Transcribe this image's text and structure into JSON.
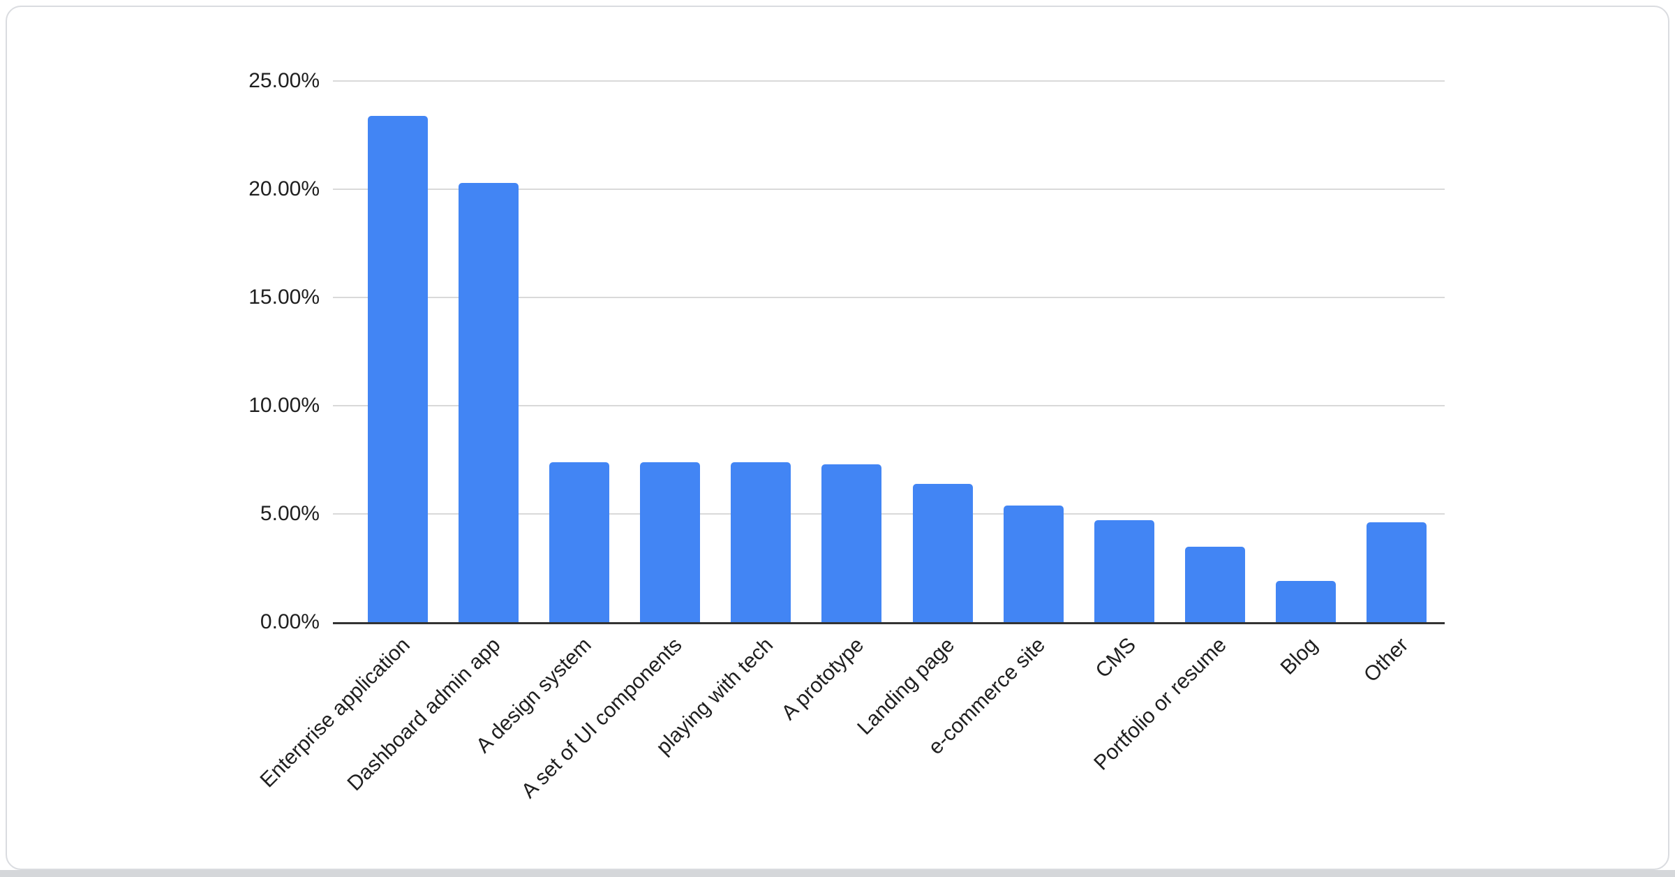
{
  "chart_data": {
    "type": "bar",
    "title": "",
    "xlabel": "",
    "ylabel": "",
    "categories": [
      "Enterprise application",
      "Dashboard admin app",
      "A design system",
      "A set of UI components",
      "playing with tech",
      "A prototype",
      "Landing page",
      "e-commerce site",
      "CMS",
      "Portfolio or resume",
      "Blog",
      "Other"
    ],
    "values": [
      23.4,
      20.3,
      7.4,
      7.4,
      7.4,
      7.3,
      6.4,
      5.4,
      4.7,
      3.5,
      1.9,
      4.6
    ],
    "value_format": "percent",
    "ylim": [
      0,
      25
    ],
    "y_ticks": [
      {
        "value": 25,
        "label": "25.00%"
      },
      {
        "value": 20,
        "label": "20.00%"
      },
      {
        "value": 15,
        "label": "15.00%"
      },
      {
        "value": 10,
        "label": "10.00%"
      },
      {
        "value": 5,
        "label": "5.00%"
      },
      {
        "value": 0,
        "label": "0.00%"
      }
    ],
    "grid": true,
    "legend": "none",
    "x_label_rotation_deg": 45,
    "colors": {
      "bar": "#4285f4",
      "gridline": "#d9d9d9",
      "axis_line": "#333333",
      "text": "#1f1f1f",
      "card_border": "#dadce0",
      "page_bottom_strip": "#d5d7da"
    }
  }
}
